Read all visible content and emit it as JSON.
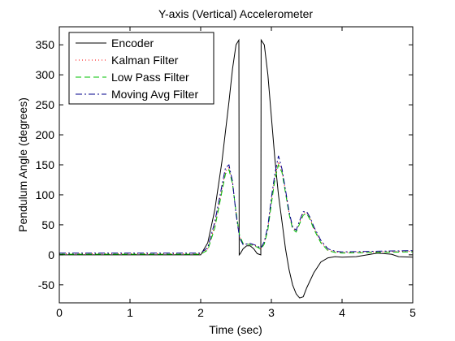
{
  "chart_data": {
    "type": "line",
    "title": "Y-axis (Vertical) Accelerometer",
    "xlabel": "Time (sec)",
    "ylabel": "Pendulum Angle (degrees)",
    "xlim": [
      0,
      5
    ],
    "ylim": [
      -80,
      380
    ],
    "x_ticks": [
      0,
      1,
      2,
      3,
      4,
      5
    ],
    "y_ticks": [
      -50,
      0,
      50,
      100,
      150,
      200,
      250,
      300,
      350
    ],
    "grid": false,
    "legend_position": "top-left",
    "series": [
      {
        "name": "Encoder",
        "color": "#000000",
        "dash": "",
        "x": [
          0,
          2.0,
          2.1,
          2.2,
          2.3,
          2.4,
          2.45,
          2.5,
          2.54,
          2.545,
          2.56,
          2.6,
          2.65,
          2.7,
          2.75,
          2.8,
          2.85,
          2.855,
          2.9,
          2.95,
          3.0,
          3.05,
          3.1,
          3.15,
          3.2,
          3.25,
          3.3,
          3.35,
          3.4,
          3.45,
          3.5,
          3.6,
          3.7,
          3.8,
          3.9,
          4.0,
          4.2,
          4.5,
          4.7,
          4.8,
          5.0
        ],
        "y": [
          0,
          0,
          20,
          75,
          155,
          255,
          310,
          350,
          358,
          0,
          2,
          10,
          15,
          15,
          10,
          2,
          0,
          358,
          350,
          300,
          230,
          160,
          100,
          55,
          10,
          -25,
          -50,
          -65,
          -72,
          -70,
          -55,
          -30,
          -12,
          -5,
          -3,
          -4,
          -3,
          3,
          1,
          -3,
          -4
        ]
      },
      {
        "name": "Kalman Filter",
        "color": "#ff0000",
        "dash": "1,3",
        "x": [
          0,
          2.0,
          2.1,
          2.2,
          2.3,
          2.35,
          2.4,
          2.45,
          2.5,
          2.55,
          2.6,
          2.7,
          2.8,
          2.85,
          2.9,
          2.95,
          3.0,
          3.05,
          3.1,
          3.15,
          3.2,
          3.25,
          3.3,
          3.35,
          3.4,
          3.45,
          3.5,
          3.55,
          3.6,
          3.7,
          3.8,
          3.9,
          4.0,
          4.5,
          5.0
        ],
        "y": [
          2,
          2,
          10,
          50,
          110,
          140,
          145,
          120,
          70,
          30,
          18,
          18,
          14,
          10,
          20,
          45,
          90,
          130,
          155,
          140,
          105,
          70,
          45,
          40,
          55,
          70,
          70,
          60,
          45,
          22,
          8,
          5,
          4,
          5,
          6
        ]
      },
      {
        "name": "Low Pass Filter",
        "color": "#00c000",
        "dash": "7,4",
        "x": [
          0,
          2.0,
          2.1,
          2.2,
          2.3,
          2.35,
          2.4,
          2.45,
          2.5,
          2.55,
          2.6,
          2.7,
          2.8,
          2.85,
          2.9,
          2.95,
          3.0,
          3.05,
          3.1,
          3.15,
          3.2,
          3.25,
          3.3,
          3.35,
          3.4,
          3.45,
          3.5,
          3.55,
          3.6,
          3.7,
          3.8,
          3.9,
          4.0,
          4.5,
          5.0
        ],
        "y": [
          1,
          1,
          8,
          45,
          105,
          135,
          142,
          118,
          72,
          32,
          19,
          17,
          13,
          9,
          18,
          42,
          85,
          125,
          150,
          137,
          103,
          68,
          43,
          38,
          52,
          66,
          69,
          58,
          43,
          20,
          7,
          4,
          3,
          4,
          5
        ]
      },
      {
        "name": "Moving Avg Filter",
        "color": "#00008b",
        "dash": "8,3,2,3",
        "x": [
          0,
          2.0,
          2.1,
          2.2,
          2.3,
          2.35,
          2.4,
          2.45,
          2.5,
          2.55,
          2.6,
          2.7,
          2.8,
          2.85,
          2.9,
          2.95,
          3.0,
          3.05,
          3.1,
          3.15,
          3.2,
          3.25,
          3.3,
          3.35,
          3.4,
          3.45,
          3.5,
          3.55,
          3.6,
          3.7,
          3.8,
          3.9,
          4.0,
          4.5,
          5.0
        ],
        "y": [
          3,
          3,
          12,
          55,
          115,
          145,
          150,
          122,
          68,
          28,
          17,
          19,
          15,
          11,
          22,
          48,
          95,
          135,
          165,
          143,
          108,
          72,
          47,
          41,
          57,
          72,
          72,
          62,
          47,
          24,
          10,
          6,
          5,
          6,
          7
        ]
      }
    ]
  }
}
